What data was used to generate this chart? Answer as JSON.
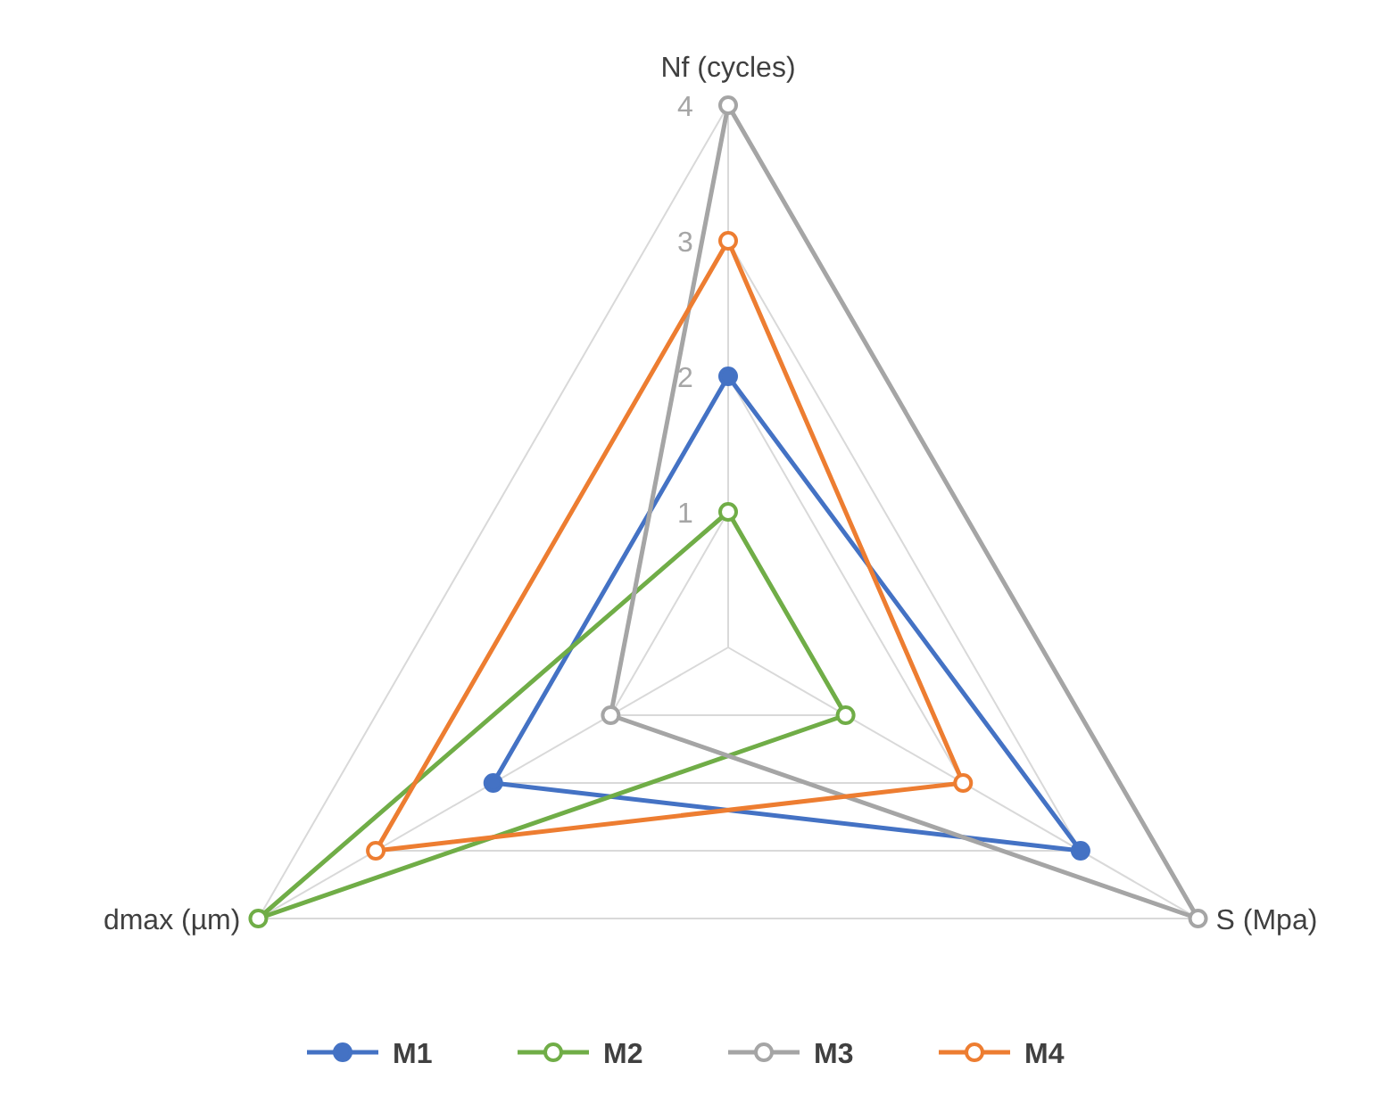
{
  "chart_data": {
    "type": "radar",
    "categories": [
      "Nf (cycles)",
      "S (Mpa)",
      "dmax (µm)"
    ],
    "series": [
      {
        "name": "M1",
        "color": "#4472c4",
        "values": [
          2,
          3,
          2
        ]
      },
      {
        "name": "M2",
        "color": "#70ad47",
        "values": [
          1,
          1,
          4
        ]
      },
      {
        "name": "M3",
        "color": "#a5a5a5",
        "values": [
          4,
          4,
          1
        ]
      },
      {
        "name": "M4",
        "color": "#ed7d31",
        "values": [
          3,
          2,
          3
        ]
      }
    ],
    "ylim": [
      0,
      4
    ],
    "yticks": [
      1,
      2,
      3,
      4
    ],
    "grid": true,
    "legend": "bottom",
    "marker": "circle",
    "line_style": "solid"
  }
}
